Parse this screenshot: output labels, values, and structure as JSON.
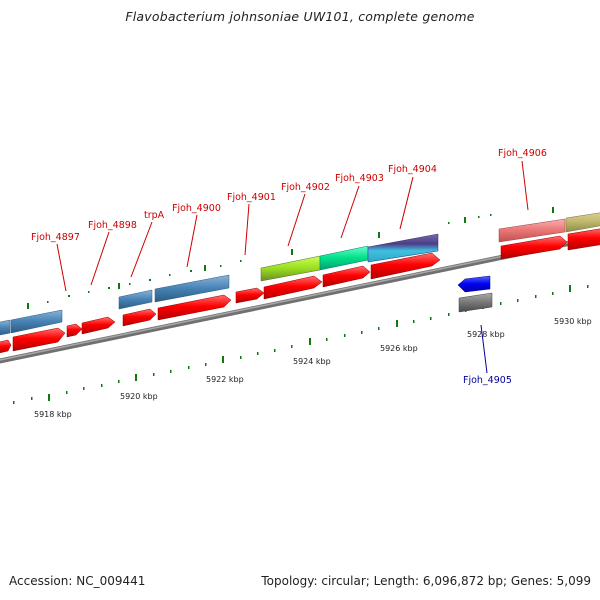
{
  "title": "Flavobacterium johnsoniae UW101, complete genome",
  "footer": {
    "accession": "Accession: NC_009441",
    "summary": "Topology: circular; Length: 6,096,872 bp; Genes: 5,099"
  },
  "scale_labels": [
    "5918 kbp",
    "5920 kbp",
    "5922 kbp",
    "5924 kbp",
    "5926 kbp",
    "5928 kbp",
    "5930 kbp"
  ],
  "gene_labels": [
    {
      "text": "Fjoh_4897",
      "strand": "forward"
    },
    {
      "text": "Fjoh_4898",
      "strand": "forward"
    },
    {
      "text": "trpA",
      "strand": "forward"
    },
    {
      "text": "Fjoh_4900",
      "strand": "forward"
    },
    {
      "text": "Fjoh_4901",
      "strand": "forward"
    },
    {
      "text": "Fjoh_4902",
      "strand": "forward"
    },
    {
      "text": "Fjoh_4903",
      "strand": "forward"
    },
    {
      "text": "Fjoh_4904",
      "strand": "forward"
    },
    {
      "text": "Fjoh_4906",
      "strand": "forward"
    },
    {
      "text": "Fjoh_4905",
      "strand": "reverse"
    }
  ],
  "colors": {
    "forward_label": "#cc0000",
    "reverse_label": "#000099",
    "cds": "#ff0000",
    "tick": "#117711",
    "backbone": "#888888"
  }
}
